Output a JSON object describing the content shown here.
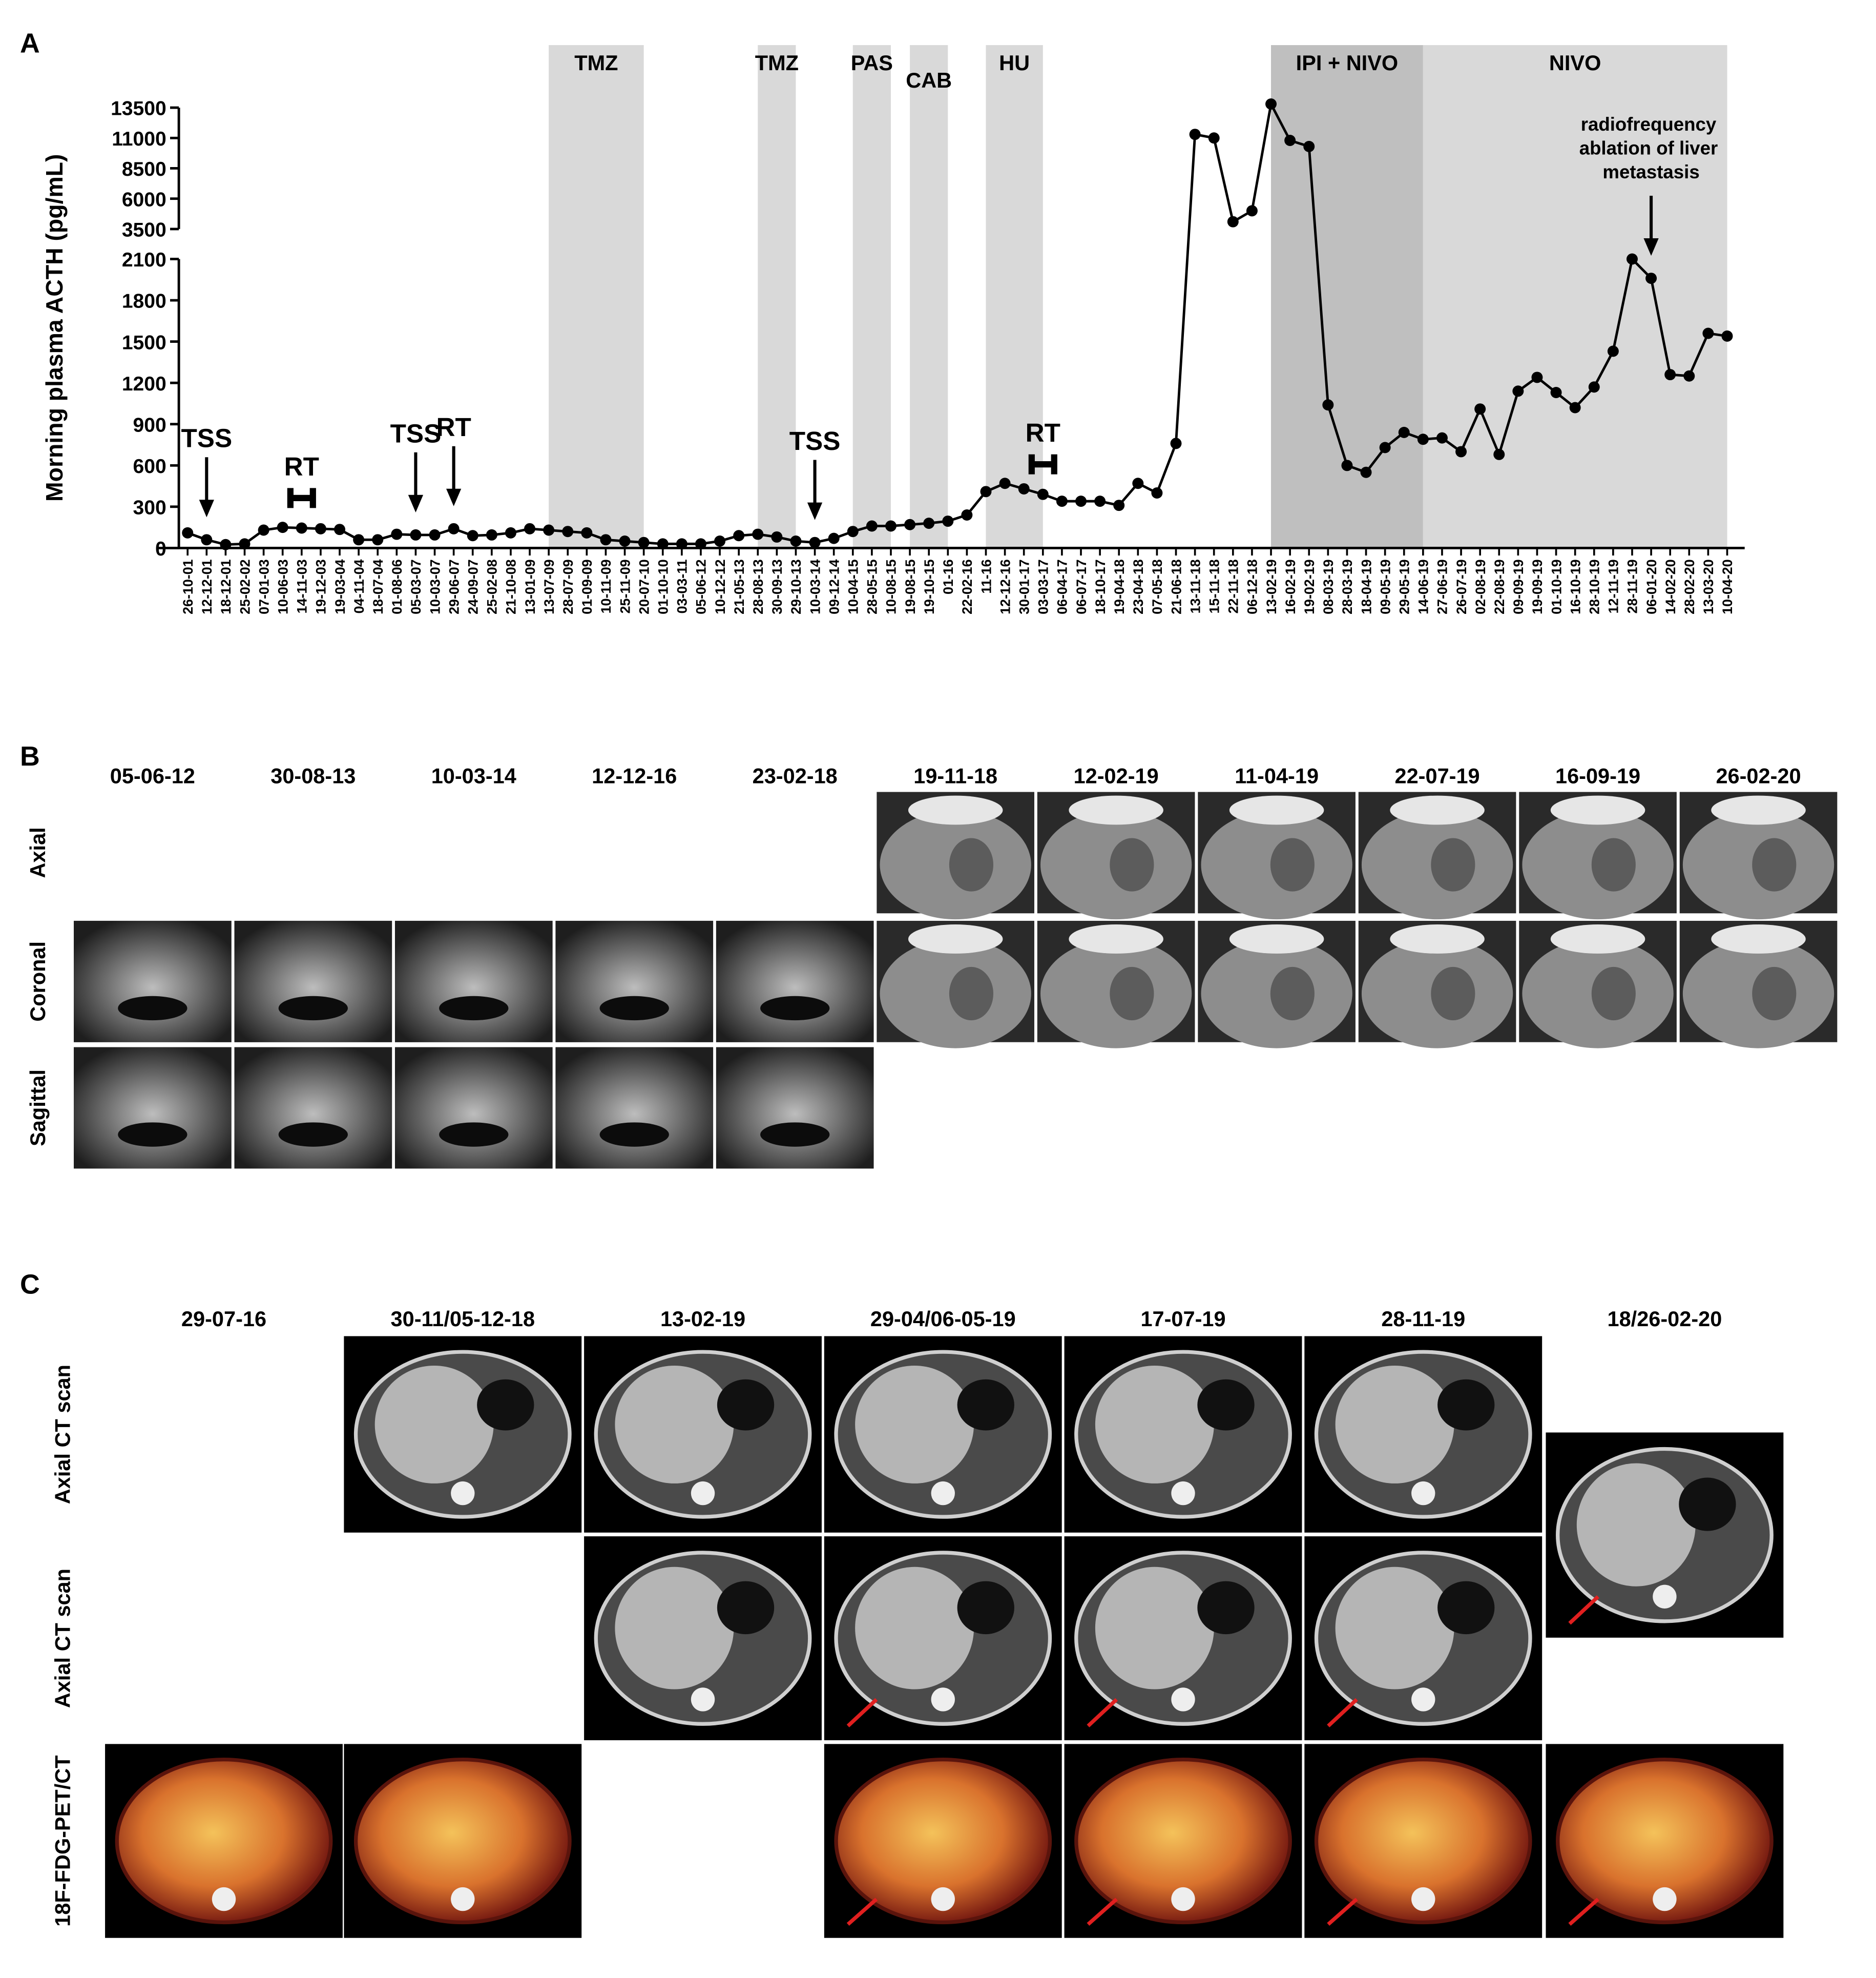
{
  "chart_data": {
    "type": "line",
    "panel_label": "A",
    "ylabel": "Morning plasma ACTH (pg/mL)",
    "categories": [
      "26-10-01",
      "12-12-01",
      "18-12-01",
      "25-02-02",
      "07-01-03",
      "10-06-03",
      "14-11-03",
      "19-12-03",
      "19-03-04",
      "04-11-04",
      "18-07-04",
      "01-08-06",
      "05-03-07",
      "10-03-07",
      "29-06-07",
      "24-09-07",
      "25-02-08",
      "21-10-08",
      "13-01-09",
      "13-07-09",
      "28-07-09",
      "01-09-09",
      "10-11-09",
      "25-11-09",
      "20-07-10",
      "01-10-10",
      "03-03-11",
      "05-06-12",
      "10-12-12",
      "21-05-13",
      "28-08-13",
      "30-09-13",
      "29-10-13",
      "10-03-14",
      "09-12-14",
      "10-04-15",
      "28-05-15",
      "10-08-15",
      "19-08-15",
      "19-10-15",
      "01-16",
      "22-02-16",
      "11-16",
      "12-12-16",
      "30-01-17",
      "03-03-17",
      "06-04-17",
      "06-07-17",
      "18-10-17",
      "19-04-18",
      "23-04-18",
      "07-05-18",
      "21-06-18",
      "13-11-18",
      "15-11-18",
      "22-11-18",
      "06-12-18",
      "13-02-19",
      "16-02-19",
      "19-02-19",
      "08-03-19",
      "28-03-19",
      "18-04-19",
      "09-05-19",
      "29-05-19",
      "14-06-19",
      "27-06-19",
      "26-07-19",
      "02-08-19",
      "22-08-19",
      "09-09-19",
      "19-09-19",
      "01-10-19",
      "16-10-19",
      "28-10-19",
      "12-11-19",
      "28-11-19",
      "06-01-20",
      "14-02-20",
      "28-02-20",
      "13-03-20",
      "10-04-20"
    ],
    "values": [
      110,
      60,
      25,
      30,
      130,
      150,
      145,
      140,
      135,
      60,
      60,
      100,
      95,
      95,
      140,
      90,
      95,
      110,
      140,
      130,
      120,
      110,
      60,
      50,
      40,
      30,
      30,
      30,
      50,
      90,
      100,
      80,
      50,
      40,
      70,
      120,
      160,
      160,
      170,
      180,
      195,
      240,
      410,
      470,
      430,
      390,
      340,
      340,
      340,
      310,
      470,
      400,
      760,
      11300,
      11000,
      4100,
      5000,
      13800,
      10800,
      10300,
      1040,
      600,
      550,
      730,
      840,
      790,
      800,
      700,
      1010,
      680,
      1140,
      1240,
      1130,
      1020,
      1170,
      1430,
      2100,
      1960,
      1260,
      1250,
      1560,
      1540
    ],
    "color": "#000000",
    "ylim": [
      0,
      13500
    ],
    "ybreak": [
      2100,
      3500
    ],
    "yticks": [
      0,
      300,
      600,
      900,
      1200,
      1500,
      1800,
      2100,
      3500,
      6000,
      8500,
      11000,
      13500
    ],
    "spans": [
      {
        "label": "TMZ",
        "start": "13-07-09",
        "end": "20-07-10",
        "color": "#d9d9d9"
      },
      {
        "label": "TMZ",
        "start": "28-08-13",
        "end": "29-10-13",
        "color": "#d9d9d9"
      },
      {
        "label": "PAS",
        "start": "10-04-15",
        "end": "10-08-15",
        "color": "#d9d9d9"
      },
      {
        "label": "CAB",
        "start": "19-08-15",
        "end": "01-16",
        "color": "#d9d9d9"
      },
      {
        "label": "HU",
        "start": "11-16",
        "end": "03-03-17",
        "color": "#d9d9d9"
      },
      {
        "label": "IPI + NIVO",
        "start": "13-02-19",
        "end": "14-06-19",
        "color": "#bfbfbf"
      },
      {
        "label": "NIVO",
        "start": "14-06-19",
        "end": "10-04-20",
        "color": "#d9d9d9"
      }
    ],
    "annotations": [
      {
        "text": "TSS",
        "category": "12-12-01",
        "style": "arrow"
      },
      {
        "text": "RT",
        "category": "14-11-03",
        "style": "bracket"
      },
      {
        "text": "TSS",
        "category": "05-03-07",
        "style": "arrow"
      },
      {
        "text": "RT",
        "category": "29-06-07",
        "style": "arrow"
      },
      {
        "text": "TSS",
        "category": "10-03-14",
        "style": "arrow"
      },
      {
        "text": "RT",
        "category": "03-03-17",
        "style": "bracket"
      },
      {
        "text": "radiofrequency ablation of liver metastasis",
        "category": "06-01-20",
        "style": "arrow"
      }
    ]
  },
  "panel_b": {
    "label": "B",
    "dates": [
      "05-06-12",
      "30-08-13",
      "10-03-14",
      "12-12-16",
      "23-02-18",
      "19-11-18",
      "12-02-19",
      "11-04-19",
      "22-07-19",
      "16-09-19",
      "26-02-20"
    ],
    "rows": [
      "Axial",
      "Coronal",
      "Sagittal"
    ]
  },
  "panel_c": {
    "label": "C",
    "dates": [
      "29-07-16",
      "30-11/05-12-18",
      "13-02-19",
      "29-04/06-05-19",
      "17-07-19",
      "28-11-19",
      "18/26-02-20"
    ],
    "rows": [
      "Axial CT scan",
      "Axial CT scan",
      "18F-FDG-PET/CT"
    ]
  }
}
